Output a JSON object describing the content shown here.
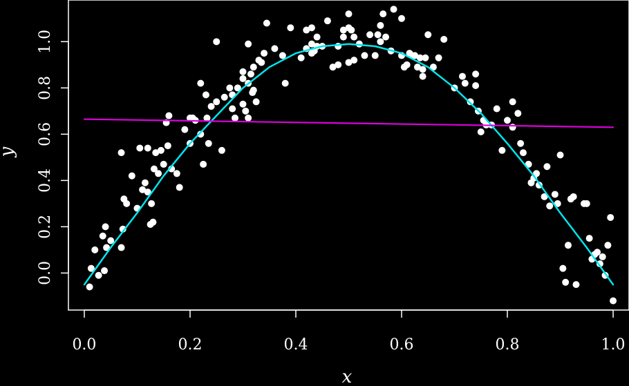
{
  "chart_data": {
    "type": "scatter",
    "title": "",
    "xlabel": "x",
    "ylabel": "y",
    "xlim": [
      -0.03,
      1.03
    ],
    "ylim": [
      -0.16,
      1.18
    ],
    "xticks": [
      0.0,
      0.2,
      0.4,
      0.6,
      0.8,
      1.0
    ],
    "yticks": [
      0.0,
      0.2,
      0.4,
      0.6,
      0.8,
      1.0
    ],
    "xtick_labels": [
      "0.0",
      "0.2",
      "0.4",
      "0.6",
      "0.8",
      "1.0"
    ],
    "ytick_labels": [
      "0.0",
      "0.2",
      "0.4",
      "0.6",
      "0.8",
      "1.0"
    ],
    "grid": false,
    "legend": "none",
    "background": "#000000",
    "series": [
      {
        "kind": "points",
        "color": "#ffffff",
        "points": [
          [
            0.01,
            -0.06
          ],
          [
            0.013,
            0.02
          ],
          [
            0.02,
            0.1
          ],
          [
            0.027,
            -0.01
          ],
          [
            0.035,
            0.16
          ],
          [
            0.038,
            0.01
          ],
          [
            0.04,
            0.2
          ],
          [
            0.042,
            0.11
          ],
          [
            0.05,
            0.14
          ],
          [
            0.07,
            0.52
          ],
          [
            0.07,
            0.11
          ],
          [
            0.073,
            0.19
          ],
          [
            0.075,
            0.32
          ],
          [
            0.08,
            0.3
          ],
          [
            0.09,
            0.42
          ],
          [
            0.1,
            0.28
          ],
          [
            0.105,
            0.54
          ],
          [
            0.11,
            0.36
          ],
          [
            0.115,
            0.39
          ],
          [
            0.12,
            0.54
          ],
          [
            0.12,
            0.35
          ],
          [
            0.125,
            0.21
          ],
          [
            0.127,
            0.3
          ],
          [
            0.13,
            0.22
          ],
          [
            0.132,
            0.45
          ],
          [
            0.135,
            0.52
          ],
          [
            0.14,
            0.43
          ],
          [
            0.145,
            0.53
          ],
          [
            0.15,
            0.47
          ],
          [
            0.155,
            0.65
          ],
          [
            0.158,
            0.55
          ],
          [
            0.16,
            0.68
          ],
          [
            0.165,
            0.45
          ],
          [
            0.175,
            0.43
          ],
          [
            0.18,
            0.37
          ],
          [
            0.19,
            0.62
          ],
          [
            0.2,
            0.67
          ],
          [
            0.2,
            0.56
          ],
          [
            0.205,
            0.67
          ],
          [
            0.21,
            0.66
          ],
          [
            0.22,
            0.6
          ],
          [
            0.22,
            0.82
          ],
          [
            0.225,
            0.47
          ],
          [
            0.23,
            0.77
          ],
          [
            0.232,
            0.67
          ],
          [
            0.235,
            0.56
          ],
          [
            0.24,
            0.72
          ],
          [
            0.25,
            0.74
          ],
          [
            0.25,
            1.0
          ],
          [
            0.26,
            0.53
          ],
          [
            0.265,
            0.76
          ],
          [
            0.275,
            0.8
          ],
          [
            0.28,
            0.71
          ],
          [
            0.28,
            0.77
          ],
          [
            0.285,
            0.67
          ],
          [
            0.29,
            0.8
          ],
          [
            0.3,
            0.84
          ],
          [
            0.3,
            0.87
          ],
          [
            0.3,
            0.73
          ],
          [
            0.305,
            0.7
          ],
          [
            0.31,
            0.99
          ],
          [
            0.31,
            0.82
          ],
          [
            0.31,
            0.67
          ],
          [
            0.315,
            0.86
          ],
          [
            0.318,
            0.78
          ],
          [
            0.32,
            0.89
          ],
          [
            0.32,
            0.79
          ],
          [
            0.325,
            0.74
          ],
          [
            0.33,
            0.92
          ],
          [
            0.335,
            0.91
          ],
          [
            0.34,
            0.95
          ],
          [
            0.345,
            1.08
          ],
          [
            0.36,
            0.97
          ],
          [
            0.375,
            0.94
          ],
          [
            0.38,
            0.82
          ],
          [
            0.39,
            1.06
          ],
          [
            0.41,
            0.93
          ],
          [
            0.42,
            0.97
          ],
          [
            0.42,
            1.05
          ],
          [
            0.43,
            1.06
          ],
          [
            0.43,
            0.99
          ],
          [
            0.43,
            0.95
          ],
          [
            0.435,
            0.96
          ],
          [
            0.44,
            1.02
          ],
          [
            0.44,
            0.98
          ],
          [
            0.45,
            0.98
          ],
          [
            0.46,
            1.09
          ],
          [
            0.47,
            0.89
          ],
          [
            0.48,
            0.98
          ],
          [
            0.48,
            0.9
          ],
          [
            0.49,
            1.05
          ],
          [
            0.49,
            1.02
          ],
          [
            0.5,
            0.91
          ],
          [
            0.5,
            1.06
          ],
          [
            0.5,
            1.12
          ],
          [
            0.505,
            1.05
          ],
          [
            0.51,
            1.02
          ],
          [
            0.51,
            0.92
          ],
          [
            0.52,
            0.99
          ],
          [
            0.53,
            0.94
          ],
          [
            0.54,
            1.03
          ],
          [
            0.55,
            0.94
          ],
          [
            0.555,
            1.03
          ],
          [
            0.56,
            1.07
          ],
          [
            0.56,
            1.0
          ],
          [
            0.565,
            1.12
          ],
          [
            0.57,
            1.02
          ],
          [
            0.58,
            0.96
          ],
          [
            0.585,
            1.14
          ],
          [
            0.6,
            0.94
          ],
          [
            0.6,
            1.1
          ],
          [
            0.605,
            0.89
          ],
          [
            0.61,
            0.9
          ],
          [
            0.615,
            0.95
          ],
          [
            0.62,
            0.94
          ],
          [
            0.625,
            0.94
          ],
          [
            0.63,
            0.89
          ],
          [
            0.635,
            0.93
          ],
          [
            0.64,
            0.88
          ],
          [
            0.64,
            0.85
          ],
          [
            0.645,
            0.93
          ],
          [
            0.65,
            1.03
          ],
          [
            0.66,
            0.89
          ],
          [
            0.67,
            0.93
          ],
          [
            0.68,
            1.01
          ],
          [
            0.7,
            0.8
          ],
          [
            0.715,
            0.85
          ],
          [
            0.72,
            0.82
          ],
          [
            0.73,
            0.74
          ],
          [
            0.74,
            0.86
          ],
          [
            0.74,
            0.81
          ],
          [
            0.745,
            0.7
          ],
          [
            0.75,
            0.61
          ],
          [
            0.755,
            0.66
          ],
          [
            0.76,
            0.64
          ],
          [
            0.77,
            0.64
          ],
          [
            0.78,
            0.71
          ],
          [
            0.79,
            0.53
          ],
          [
            0.8,
            0.66
          ],
          [
            0.81,
            0.63
          ],
          [
            0.81,
            0.74
          ],
          [
            0.82,
            0.69
          ],
          [
            0.825,
            0.56
          ],
          [
            0.83,
            0.52
          ],
          [
            0.84,
            0.47
          ],
          [
            0.845,
            0.39
          ],
          [
            0.85,
            0.41
          ],
          [
            0.855,
            0.43
          ],
          [
            0.86,
            0.38
          ],
          [
            0.87,
            0.33
          ],
          [
            0.875,
            0.46
          ],
          [
            0.88,
            0.29
          ],
          [
            0.89,
            0.34
          ],
          [
            0.895,
            0.3
          ],
          [
            0.9,
            0.51
          ],
          [
            0.905,
            0.02
          ],
          [
            0.91,
            -0.04
          ],
          [
            0.915,
            0.12
          ],
          [
            0.92,
            0.32
          ],
          [
            0.925,
            0.33
          ],
          [
            0.93,
            -0.05
          ],
          [
            0.945,
            0.3
          ],
          [
            0.95,
            0.3
          ],
          [
            0.955,
            0.15
          ],
          [
            0.96,
            0.06
          ],
          [
            0.965,
            0.08
          ],
          [
            0.97,
            0.09
          ],
          [
            0.975,
            0.04
          ],
          [
            0.98,
            0.07
          ],
          [
            0.985,
            -0.01
          ],
          [
            0.99,
            0.12
          ],
          [
            0.995,
            0.24
          ],
          [
            1.0,
            -0.12
          ]
        ]
      },
      {
        "kind": "curve",
        "color": "#00e5ee",
        "x": [
          0.0,
          0.05,
          0.1,
          0.15,
          0.2,
          0.25,
          0.3,
          0.35,
          0.4,
          0.45,
          0.5,
          0.55,
          0.6,
          0.65,
          0.7,
          0.75,
          0.8,
          0.85,
          0.9,
          0.95,
          1.0
        ],
        "y": [
          -0.05,
          0.11,
          0.26,
          0.42,
          0.56,
          0.68,
          0.8,
          0.89,
          0.95,
          0.98,
          0.99,
          0.98,
          0.95,
          0.89,
          0.8,
          0.69,
          0.56,
          0.42,
          0.26,
          0.11,
          -0.05
        ]
      },
      {
        "kind": "line",
        "color": "#dd00dd",
        "x": [
          0.0,
          1.0
        ],
        "y": [
          0.665,
          0.63
        ]
      }
    ]
  }
}
